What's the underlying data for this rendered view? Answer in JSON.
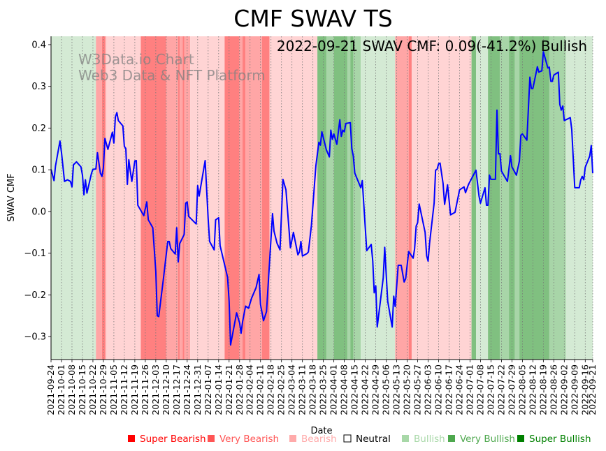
{
  "chart_data": {
    "type": "line",
    "title": "CMF SWAV TS",
    "annotation": "2022-09-21 SWAV CMF: 0.09(-41.2%) Bullish",
    "watermark": [
      "W3Data.io Chart",
      "Web3 Data & NFT Platform"
    ],
    "xlabel": "Date",
    "ylabel": "SWAV CMF",
    "start_date": "2021-09-24",
    "x_range_days": [
      0,
      362
    ],
    "ylim": [
      -0.355,
      0.42
    ],
    "yticks": [
      -0.3,
      -0.2,
      -0.1,
      0.0,
      0.1,
      0.2,
      0.3,
      0.4
    ],
    "ytick_labels": [
      "−0.3",
      "−0.2",
      "−0.1",
      "0.0",
      "0.1",
      "0.2",
      "0.3",
      "0.4"
    ],
    "xtick_labels": [
      "2021-09-24",
      "2021-10-01",
      "2021-10-08",
      "2021-10-15",
      "2021-10-22",
      "2021-10-29",
      "2021-11-05",
      "2021-11-12",
      "2021-11-19",
      "2021-11-26",
      "2021-12-03",
      "2021-12-10",
      "2021-12-17",
      "2021-12-24",
      "2021-12-31",
      "2022-01-07",
      "2022-01-14",
      "2022-01-21",
      "2022-01-28",
      "2022-02-04",
      "2022-02-11",
      "2022-02-18",
      "2022-02-25",
      "2022-03-04",
      "2022-03-11",
      "2022-03-18",
      "2022-03-25",
      "2022-04-01",
      "2022-04-08",
      "2022-04-15",
      "2022-04-22",
      "2022-04-29",
      "2022-05-06",
      "2022-05-13",
      "2022-05-20",
      "2022-05-27",
      "2022-06-03",
      "2022-06-10",
      "2022-06-17",
      "2022-06-24",
      "2022-07-01",
      "2022-07-08",
      "2022-07-15",
      "2022-07-22",
      "2022-07-29",
      "2022-08-05",
      "2022-08-12",
      "2022-08-19",
      "2022-08-26",
      "2022-09-02",
      "2022-09-09",
      "2022-09-16",
      "2022-09-21"
    ],
    "xtick_days": [
      0,
      7,
      14,
      21,
      28,
      35,
      42,
      49,
      56,
      63,
      70,
      77,
      84,
      91,
      98,
      105,
      112,
      119,
      126,
      133,
      140,
      147,
      154,
      161,
      168,
      175,
      182,
      189,
      196,
      203,
      210,
      217,
      224,
      231,
      238,
      245,
      252,
      259,
      266,
      273,
      280,
      287,
      294,
      301,
      308,
      315,
      322,
      329,
      336,
      343,
      350,
      357,
      362
    ],
    "grid": "vertical-dotted",
    "line_color": "#0000ff",
    "series": [
      {
        "name": "SWAV CMF",
        "points_day_value": [
          [
            0,
            0.101
          ],
          [
            2,
            0.074
          ],
          [
            3,
            0.109
          ],
          [
            6,
            0.169
          ],
          [
            7,
            0.141
          ],
          [
            9,
            0.072
          ],
          [
            11,
            0.076
          ],
          [
            13,
            0.072
          ],
          [
            14,
            0.059
          ],
          [
            15,
            0.112
          ],
          [
            17,
            0.119
          ],
          [
            20,
            0.107
          ],
          [
            21,
            0.087
          ],
          [
            22,
            0.04
          ],
          [
            23,
            0.076
          ],
          [
            24,
            0.044
          ],
          [
            27,
            0.091
          ],
          [
            28,
            0.101
          ],
          [
            30,
            0.102
          ],
          [
            31,
            0.141
          ],
          [
            33,
            0.092
          ],
          [
            34,
            0.084
          ],
          [
            35,
            0.104
          ],
          [
            36,
            0.175
          ],
          [
            38,
            0.149
          ],
          [
            41,
            0.19
          ],
          [
            42,
            0.164
          ],
          [
            43,
            0.227
          ],
          [
            44,
            0.237
          ],
          [
            45,
            0.218
          ],
          [
            48,
            0.205
          ],
          [
            49,
            0.156
          ],
          [
            50,
            0.151
          ],
          [
            51,
            0.065
          ],
          [
            52,
            0.124
          ],
          [
            53,
            0.096
          ],
          [
            54,
            0.072
          ],
          [
            56,
            0.121
          ],
          [
            57,
            0.122
          ],
          [
            58,
            0.015
          ],
          [
            62,
            -0.01
          ],
          [
            64,
            0.023
          ],
          [
            65,
            -0.02
          ],
          [
            68,
            -0.039
          ],
          [
            70,
            -0.144
          ],
          [
            71,
            -0.25
          ],
          [
            72,
            -0.252
          ],
          [
            75,
            -0.164
          ],
          [
            78,
            -0.072
          ],
          [
            79,
            -0.072
          ],
          [
            80,
            -0.089
          ],
          [
            83,
            -0.102
          ],
          [
            84,
            -0.039
          ],
          [
            85,
            -0.121
          ],
          [
            86,
            -0.077
          ],
          [
            89,
            -0.055
          ],
          [
            90,
            0.02
          ],
          [
            91,
            0.023
          ],
          [
            92,
            -0.012
          ],
          [
            97,
            -0.03
          ],
          [
            98,
            0.062
          ],
          [
            99,
            0.037
          ],
          [
            103,
            0.122
          ],
          [
            105,
            -0.017
          ],
          [
            106,
            -0.072
          ],
          [
            109,
            -0.092
          ],
          [
            110,
            -0.02
          ],
          [
            112,
            -0.015
          ],
          [
            113,
            -0.082
          ],
          [
            118,
            -0.158
          ],
          [
            119,
            -0.215
          ],
          [
            120,
            -0.32
          ],
          [
            124,
            -0.243
          ],
          [
            126,
            -0.267
          ],
          [
            127,
            -0.292
          ],
          [
            128,
            -0.265
          ],
          [
            130,
            -0.227
          ],
          [
            132,
            -0.232
          ],
          [
            134,
            -0.208
          ],
          [
            137,
            -0.183
          ],
          [
            139,
            -0.151
          ],
          [
            140,
            -0.223
          ],
          [
            142,
            -0.262
          ],
          [
            144,
            -0.24
          ],
          [
            148,
            -0.005
          ],
          [
            149,
            -0.047
          ],
          [
            151,
            -0.076
          ],
          [
            153,
            -0.092
          ],
          [
            155,
            0.077
          ],
          [
            157,
            0.052
          ],
          [
            160,
            -0.087
          ],
          [
            162,
            -0.05
          ],
          [
            165,
            -0.104
          ],
          [
            166,
            -0.097
          ],
          [
            167,
            -0.072
          ],
          [
            168,
            -0.107
          ],
          [
            171,
            -0.101
          ],
          [
            172,
            -0.097
          ],
          [
            174,
            -0.034
          ],
          [
            175,
            0.015
          ],
          [
            177,
            0.109
          ],
          [
            179,
            0.166
          ],
          [
            180,
            0.159
          ],
          [
            181,
            0.191
          ],
          [
            184,
            0.148
          ],
          [
            186,
            0.131
          ],
          [
            187,
            0.195
          ],
          [
            188,
            0.173
          ],
          [
            189,
            0.186
          ],
          [
            191,
            0.161
          ],
          [
            193,
            0.22
          ],
          [
            194,
            0.18
          ],
          [
            195,
            0.195
          ],
          [
            196,
            0.191
          ],
          [
            197,
            0.211
          ],
          [
            200,
            0.213
          ],
          [
            201,
            0.151
          ],
          [
            202,
            0.133
          ],
          [
            203,
            0.092
          ],
          [
            207,
            0.057
          ],
          [
            208,
            0.074
          ],
          [
            211,
            -0.094
          ],
          [
            214,
            -0.079
          ],
          [
            215,
            -0.119
          ],
          [
            216,
            -0.195
          ],
          [
            217,
            -0.178
          ],
          [
            218,
            -0.277
          ],
          [
            222,
            -0.159
          ],
          [
            223,
            -0.086
          ],
          [
            225,
            -0.215
          ],
          [
            228,
            -0.277
          ],
          [
            229,
            -0.203
          ],
          [
            230,
            -0.228
          ],
          [
            232,
            -0.129
          ],
          [
            234,
            -0.129
          ],
          [
            236,
            -0.169
          ],
          [
            237,
            -0.161
          ],
          [
            239,
            -0.096
          ],
          [
            242,
            -0.112
          ],
          [
            243,
            -0.089
          ],
          [
            244,
            -0.035
          ],
          [
            245,
            -0.027
          ],
          [
            246,
            0.018
          ],
          [
            250,
            -0.05
          ],
          [
            251,
            -0.106
          ],
          [
            252,
            -0.119
          ],
          [
            253,
            -0.076
          ],
          [
            256,
            0.02
          ],
          [
            257,
            0.099
          ],
          [
            258,
            0.101
          ],
          [
            259,
            0.114
          ],
          [
            260,
            0.116
          ],
          [
            262,
            0.067
          ],
          [
            263,
            0.017
          ],
          [
            265,
            0.064
          ],
          [
            267,
            -0.008
          ],
          [
            270,
            -0.002
          ],
          [
            273,
            0.052
          ],
          [
            276,
            0.059
          ],
          [
            277,
            0.045
          ],
          [
            279,
            0.065
          ],
          [
            284,
            0.099
          ],
          [
            286,
            0.037
          ],
          [
            287,
            0.02
          ],
          [
            290,
            0.057
          ],
          [
            291,
            0.015
          ],
          [
            292,
            0.015
          ],
          [
            293,
            0.087
          ],
          [
            294,
            0.077
          ],
          [
            297,
            0.077
          ],
          [
            298,
            0.243
          ],
          [
            299,
            0.138
          ],
          [
            300,
            0.139
          ],
          [
            301,
            0.097
          ],
          [
            305,
            0.072
          ],
          [
            307,
            0.134
          ],
          [
            308,
            0.107
          ],
          [
            311,
            0.087
          ],
          [
            313,
            0.121
          ],
          [
            314,
            0.183
          ],
          [
            315,
            0.186
          ],
          [
            318,
            0.171
          ],
          [
            320,
            0.322
          ],
          [
            321,
            0.295
          ],
          [
            322,
            0.295
          ],
          [
            325,
            0.347
          ],
          [
            326,
            0.334
          ],
          [
            327,
            0.336
          ],
          [
            328,
            0.337
          ],
          [
            329,
            0.383
          ],
          [
            332,
            0.344
          ],
          [
            333,
            0.346
          ],
          [
            334,
            0.312
          ],
          [
            335,
            0.312
          ],
          [
            336,
            0.327
          ],
          [
            339,
            0.334
          ],
          [
            340,
            0.257
          ],
          [
            341,
            0.243
          ],
          [
            342,
            0.253
          ],
          [
            343,
            0.218
          ],
          [
            347,
            0.225
          ],
          [
            348,
            0.196
          ],
          [
            350,
            0.057
          ],
          [
            353,
            0.057
          ],
          [
            354,
            0.076
          ],
          [
            355,
            0.084
          ],
          [
            356,
            0.076
          ],
          [
            357,
            0.106
          ],
          [
            360,
            0.133
          ],
          [
            361,
            0.158
          ],
          [
            362,
            0.092
          ]
        ]
      }
    ],
    "band_colors": {
      "Super Bearish": "#ff8080",
      "Very Bearish": "#ffa6a6",
      "Bearish": "#ffd4d4",
      "Bullish": "#d4ead4",
      "Very Bullish": "#a8d5a8",
      "Super Bullish": "#80c080"
    },
    "bands": [
      [
        0,
        30,
        "Bullish"
      ],
      [
        30,
        34,
        "Very Bearish"
      ],
      [
        34,
        36,
        "Super Bearish"
      ],
      [
        36,
        37,
        "Very Bearish"
      ],
      [
        37,
        60,
        "Bearish"
      ],
      [
        60,
        77,
        "Super Bearish"
      ],
      [
        77,
        85,
        "Very Bearish"
      ],
      [
        85,
        86,
        "Super Bearish"
      ],
      [
        86,
        88,
        "Very Bearish"
      ],
      [
        88,
        89,
        "Super Bearish"
      ],
      [
        89,
        93,
        "Very Bearish"
      ],
      [
        93,
        116,
        "Bearish"
      ],
      [
        116,
        126,
        "Super Bearish"
      ],
      [
        126,
        128,
        "Very Bearish"
      ],
      [
        128,
        130,
        "Super Bearish"
      ],
      [
        130,
        141,
        "Very Bearish"
      ],
      [
        141,
        146,
        "Super Bearish"
      ],
      [
        146,
        178,
        "Bearish"
      ],
      [
        178,
        184,
        "Super Bullish"
      ],
      [
        184,
        189,
        "Very Bullish"
      ],
      [
        189,
        198,
        "Super Bullish"
      ],
      [
        198,
        200,
        "Very Bullish"
      ],
      [
        200,
        202,
        "Super Bullish"
      ],
      [
        202,
        207,
        "Very Bullish"
      ],
      [
        207,
        230,
        "Bullish"
      ],
      [
        230,
        239,
        "Very Bearish"
      ],
      [
        239,
        241,
        "Super Bearish"
      ],
      [
        241,
        281,
        "Bearish"
      ],
      [
        281,
        284,
        "Super Bullish"
      ],
      [
        284,
        292,
        "Bullish"
      ],
      [
        292,
        300,
        "Super Bullish"
      ],
      [
        300,
        306,
        "Very Bullish"
      ],
      [
        306,
        310,
        "Super Bullish"
      ],
      [
        310,
        313,
        "Very Bullish"
      ],
      [
        313,
        333,
        "Super Bullish"
      ],
      [
        333,
        344,
        "Very Bullish"
      ],
      [
        344,
        362,
        "Bullish"
      ]
    ],
    "legend": {
      "placement": "bottom-right",
      "items": [
        {
          "label": "Super Bearish",
          "color": "#ff0000"
        },
        {
          "label": "Very Bearish",
          "color": "#ff5555"
        },
        {
          "label": "Bearish",
          "color": "#ffaaaa"
        },
        {
          "label": "Neutral",
          "color": "#ffffff"
        },
        {
          "label": "Bullish",
          "color": "#a8d8a8"
        },
        {
          "label": "Very Bullish",
          "color": "#4ea84e"
        },
        {
          "label": "Super Bullish",
          "color": "#008000"
        }
      ]
    }
  }
}
